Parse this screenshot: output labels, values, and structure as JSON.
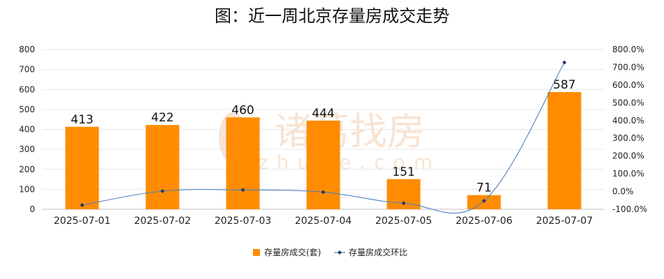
{
  "chart_data": {
    "type": "bar",
    "title": "图：近一周北京存量房成交走势",
    "categories": [
      "2025-07-01",
      "2025-07-02",
      "2025-07-03",
      "2025-07-04",
      "2025-07-05",
      "2025-07-06",
      "2025-07-07"
    ],
    "series": [
      {
        "name": "存量房成交(套)",
        "type": "bar",
        "axis": "left",
        "color": "#ff8c00",
        "values": [
          413,
          422,
          460,
          444,
          151,
          71,
          587
        ],
        "data_labels": [
          "413",
          "422",
          "460",
          "444",
          "151",
          "71",
          "587"
        ]
      },
      {
        "name": "存量房成交环比",
        "type": "line",
        "axis": "right",
        "color": "#4f81bd",
        "unit": "%",
        "values": [
          -76.5,
          2.2,
          9.0,
          -3.5,
          -66.0,
          -53.0,
          726.8
        ]
      }
    ],
    "y_left": {
      "min": 0,
      "max": 800,
      "ticks": [
        "0",
        "100",
        "200",
        "300",
        "400",
        "500",
        "600",
        "700",
        "800"
      ]
    },
    "y_right": {
      "min": -100,
      "max": 800,
      "ticks": [
        "-100.0%",
        "0.0%",
        "100.0%",
        "200.0%",
        "300.0%",
        "400.0%",
        "500.0%",
        "600.0%",
        "700.0%",
        "800.0%"
      ]
    },
    "grid": true,
    "legend_position": "bottom"
  },
  "watermark": {
    "text": "诸葛找房",
    "subtext": "zhuge.com",
    "color": "#f6dcc6"
  }
}
